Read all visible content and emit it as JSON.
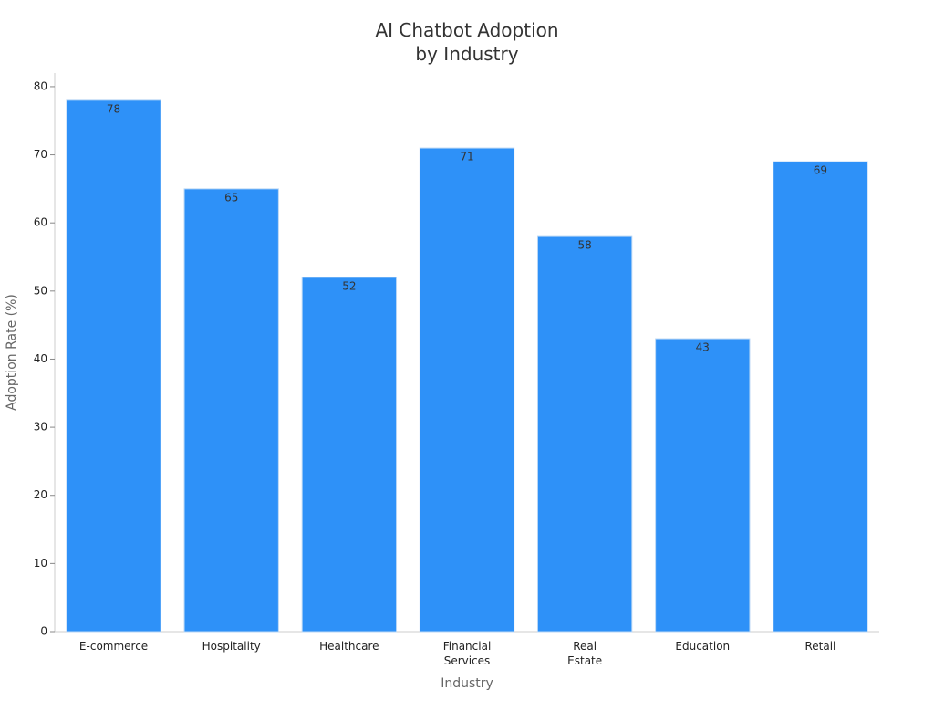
{
  "chart_data": {
    "type": "bar",
    "title": "AI Chatbot Adoption\nby Industry",
    "x_label": "Industry",
    "y_label": "Adoption Rate (%)",
    "categories": [
      "E-commerce",
      "Hospitality",
      "Healthcare",
      "Financial\nServices",
      "Real\nEstate",
      "Education",
      "Retail"
    ],
    "values": [
      78,
      65,
      52,
      71,
      58,
      43,
      69
    ],
    "color": "#2e91f8",
    "ylim": [
      0,
      82
    ],
    "yticks": [
      0,
      10,
      20,
      30,
      40,
      50,
      60,
      70,
      80
    ],
    "grid": false
  }
}
